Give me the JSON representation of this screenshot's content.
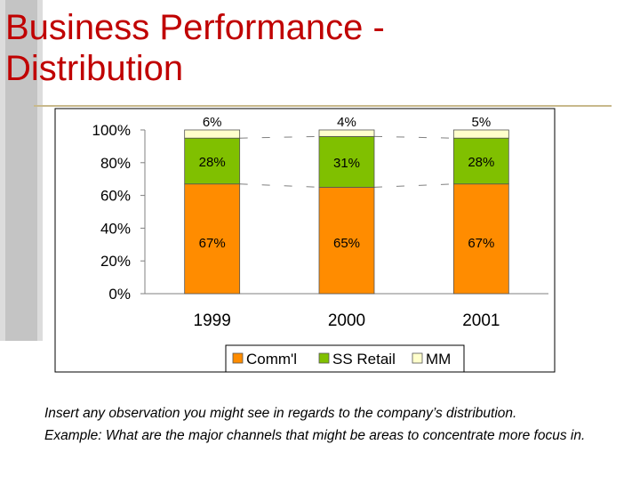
{
  "slide": {
    "title_line1": "Business Performance -",
    "title_line2": "Distribution",
    "notes": [
      "Insert any observation you might see in regards to the company’s distribution.",
      "Example: What are the major channels that might be areas to concentrate more focus in."
    ]
  },
  "chart_data": {
    "type": "bar",
    "stacked": true,
    "percent_stacked": true,
    "categories": [
      "1999",
      "2000",
      "2001"
    ],
    "series": [
      {
        "name": "Comm'l",
        "values": [
          67,
          65,
          67
        ],
        "labels": [
          "67%",
          "65%",
          "67%"
        ],
        "color": "#ff8c00"
      },
      {
        "name": "SS Retail",
        "values": [
          28,
          31,
          28
        ],
        "labels": [
          "28%",
          "31%",
          "28%"
        ],
        "color": "#80c000"
      },
      {
        "name": "MM",
        "values": [
          6,
          4,
          5
        ],
        "labels": [
          "6%",
          "4%",
          "5%"
        ],
        "color": "#ffffcc"
      }
    ],
    "y_ticks": [
      "0%",
      "20%",
      "40%",
      "60%",
      "80%",
      "100%"
    ],
    "ylim": [
      0,
      100
    ],
    "legend_position": "bottom",
    "title": "",
    "xlabel": "",
    "ylabel": ""
  },
  "colors": {
    "title": "#c00000",
    "rule": "#c8b98c"
  }
}
